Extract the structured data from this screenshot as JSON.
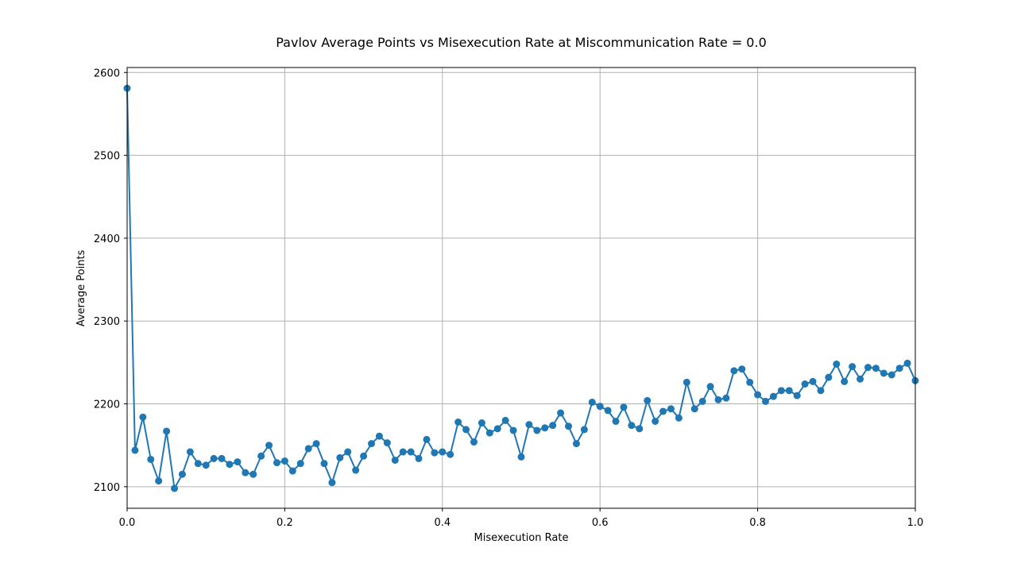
{
  "chart_data": {
    "type": "line",
    "title": "Pavlov Average Points vs Misexecution Rate at Miscommunication Rate = 0.0",
    "xlabel": "Misexecution Rate",
    "ylabel": "Average Points",
    "xlim": [
      0.0,
      1.0
    ],
    "ylim": [
      2074,
      2606
    ],
    "xticks": [
      "0.0",
      "0.2",
      "0.4",
      "0.6",
      "0.8",
      "1.0"
    ],
    "yticks": [
      "2100",
      "2200",
      "2300",
      "2400",
      "2500",
      "2600"
    ],
    "grid": true,
    "marker": "circle",
    "line_color": "#1f77b4",
    "x": [
      0.0,
      0.01,
      0.02,
      0.03,
      0.04,
      0.05,
      0.06,
      0.07,
      0.08,
      0.09,
      0.1,
      0.11,
      0.12,
      0.13,
      0.14,
      0.15,
      0.16,
      0.17,
      0.18,
      0.19,
      0.2,
      0.21,
      0.22,
      0.23,
      0.24,
      0.25,
      0.26,
      0.27,
      0.28,
      0.29,
      0.3,
      0.31,
      0.32,
      0.33,
      0.34,
      0.35,
      0.36,
      0.37,
      0.38,
      0.39,
      0.4,
      0.41,
      0.42,
      0.43,
      0.44,
      0.45,
      0.46,
      0.47,
      0.48,
      0.49,
      0.5,
      0.51,
      0.52,
      0.53,
      0.54,
      0.55,
      0.56,
      0.57,
      0.58,
      0.59,
      0.6,
      0.61,
      0.62,
      0.63,
      0.64,
      0.65,
      0.66,
      0.67,
      0.68,
      0.69,
      0.7,
      0.71,
      0.72,
      0.73,
      0.74,
      0.75,
      0.76,
      0.77,
      0.78,
      0.79,
      0.8,
      0.81,
      0.82,
      0.83,
      0.84,
      0.85,
      0.86,
      0.87,
      0.88,
      0.89,
      0.9,
      0.91,
      0.92,
      0.93,
      0.94,
      0.95,
      0.96,
      0.97,
      0.98,
      0.99,
      1.0
    ],
    "y": [
      2581,
      2144,
      2184,
      2133,
      2107,
      2167,
      2098,
      2115,
      2142,
      2128,
      2126,
      2134,
      2134,
      2127,
      2130,
      2117,
      2115,
      2137,
      2150,
      2129,
      2131,
      2119,
      2128,
      2146,
      2152,
      2128,
      2105,
      2135,
      2142,
      2120,
      2137,
      2152,
      2161,
      2153,
      2132,
      2142,
      2142,
      2134,
      2157,
      2141,
      2142,
      2139,
      2178,
      2169,
      2154,
      2177,
      2165,
      2170,
      2180,
      2168,
      2136,
      2175,
      2168,
      2171,
      2174,
      2189,
      2173,
      2152,
      2169,
      2202,
      2197,
      2192,
      2179,
      2196,
      2174,
      2170,
      2204,
      2179,
      2191,
      2194,
      2183,
      2226,
      2194,
      2203,
      2221,
      2205,
      2207,
      2240,
      2242,
      2226,
      2211,
      2203,
      2209,
      2216,
      2216,
      2210,
      2224,
      2227,
      2216,
      2232,
      2248,
      2227,
      2245,
      2230,
      2244,
      2243,
      2237,
      2235,
      2243,
      2249,
      2228
    ]
  }
}
